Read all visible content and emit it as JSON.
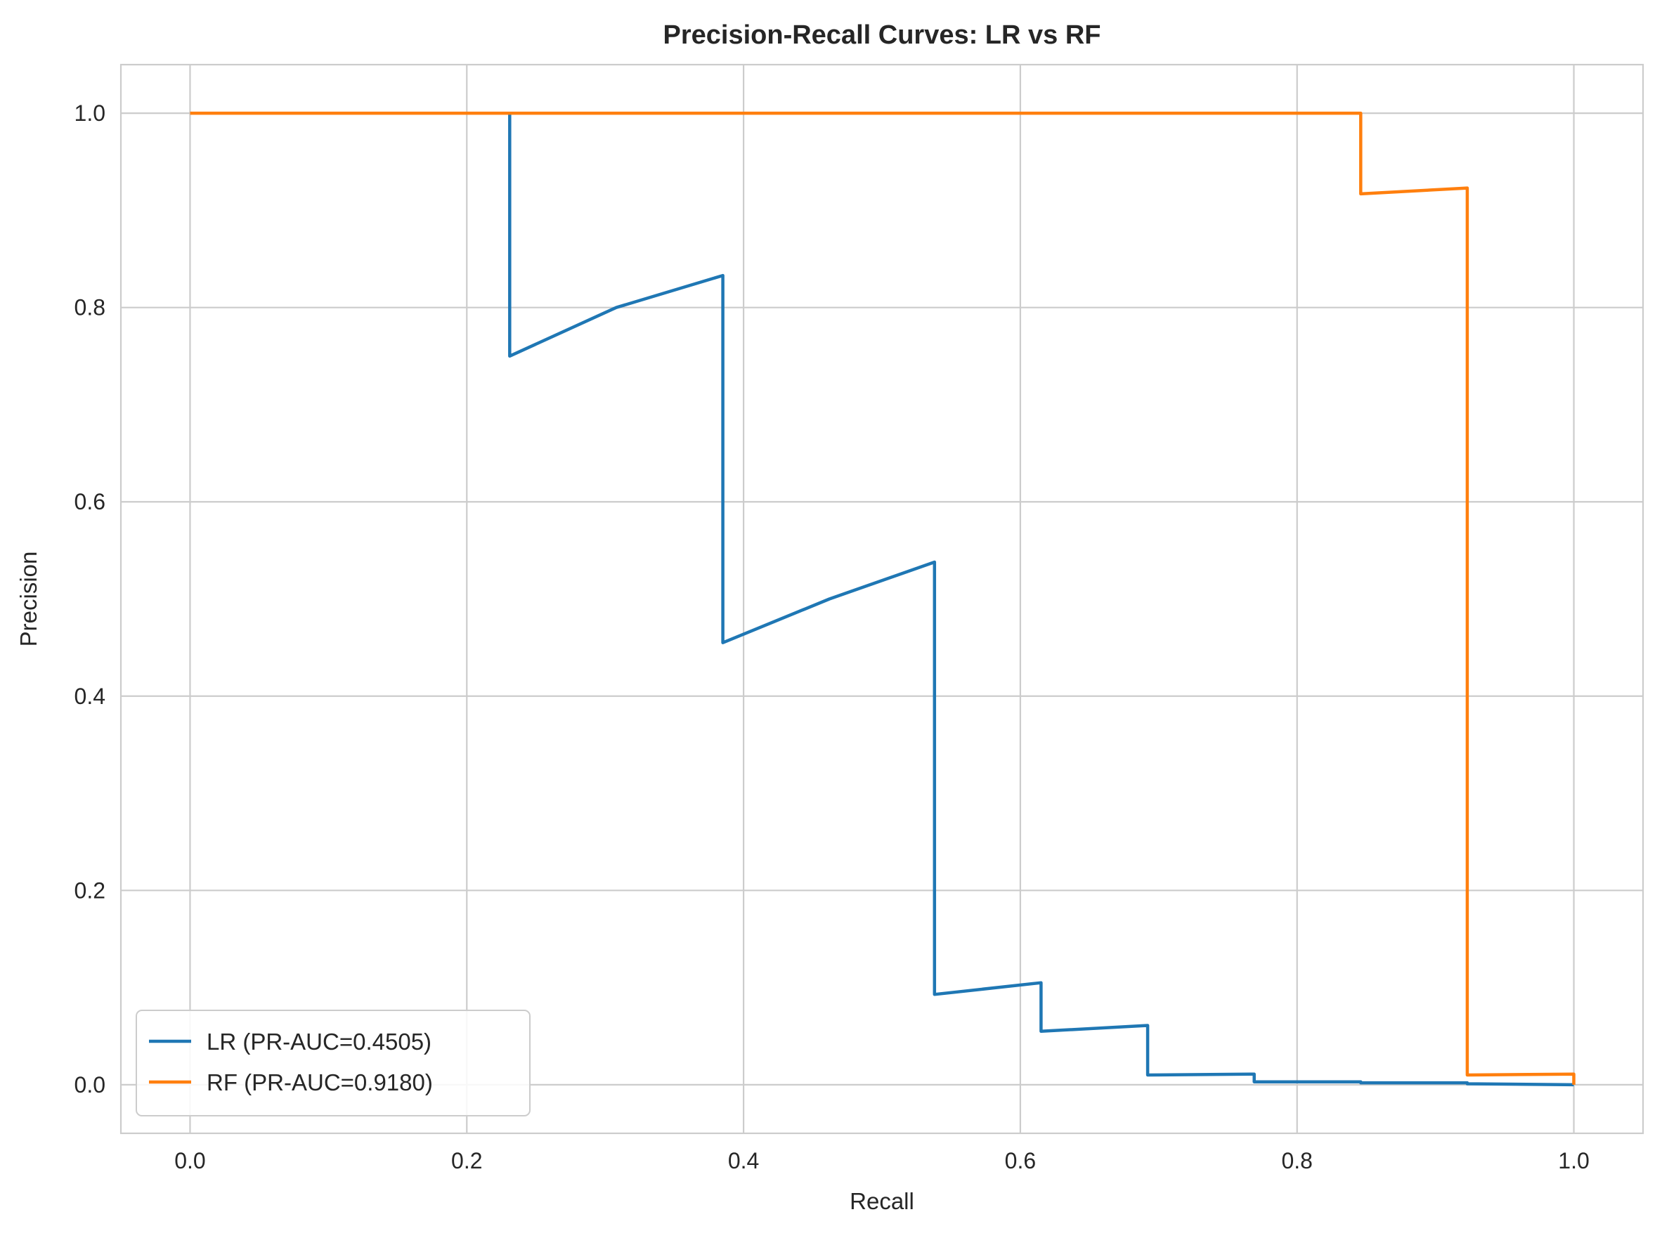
{
  "chart_data": {
    "type": "line",
    "title": "Precision-Recall Curves: LR vs RF",
    "xlabel": "Recall",
    "ylabel": "Precision",
    "xlim": [
      -0.05,
      1.05
    ],
    "ylim": [
      -0.05,
      1.05
    ],
    "xticks": [
      0.0,
      0.2,
      0.4,
      0.6,
      0.8,
      1.0
    ],
    "yticks": [
      0.0,
      0.2,
      0.4,
      0.6,
      0.8,
      1.0
    ],
    "xtick_labels": [
      "0.0",
      "0.2",
      "0.4",
      "0.6",
      "0.8",
      "1.0"
    ],
    "ytick_labels": [
      "0.0",
      "0.2",
      "0.4",
      "0.6",
      "0.8",
      "1.0"
    ],
    "grid": true,
    "legend_position": "lower-left",
    "series": [
      {
        "name": "LR (PR-AUC=0.4505)",
        "color": "#1f77b4",
        "x": [
          1.0,
          0.923,
          0.923,
          0.846,
          0.846,
          0.769,
          0.769,
          0.692,
          0.692,
          0.615,
          0.615,
          0.538,
          0.538,
          0.462,
          0.385,
          0.385,
          0.308,
          0.231,
          0.231
        ],
        "y": [
          0.0,
          0.001,
          0.002,
          0.002,
          0.003,
          0.003,
          0.011,
          0.01,
          0.061,
          0.055,
          0.105,
          0.093,
          0.538,
          0.5,
          0.455,
          0.833,
          0.8,
          0.75,
          1.0
        ]
      },
      {
        "name": "RF (PR-AUC=0.9180)",
        "color": "#ff7f0e",
        "x": [
          1.0,
          1.0,
          0.923,
          0.923,
          0.846,
          0.846,
          0.0
        ],
        "y": [
          0.0,
          0.011,
          0.01,
          0.923,
          0.917,
          1.0,
          1.0
        ]
      }
    ]
  }
}
